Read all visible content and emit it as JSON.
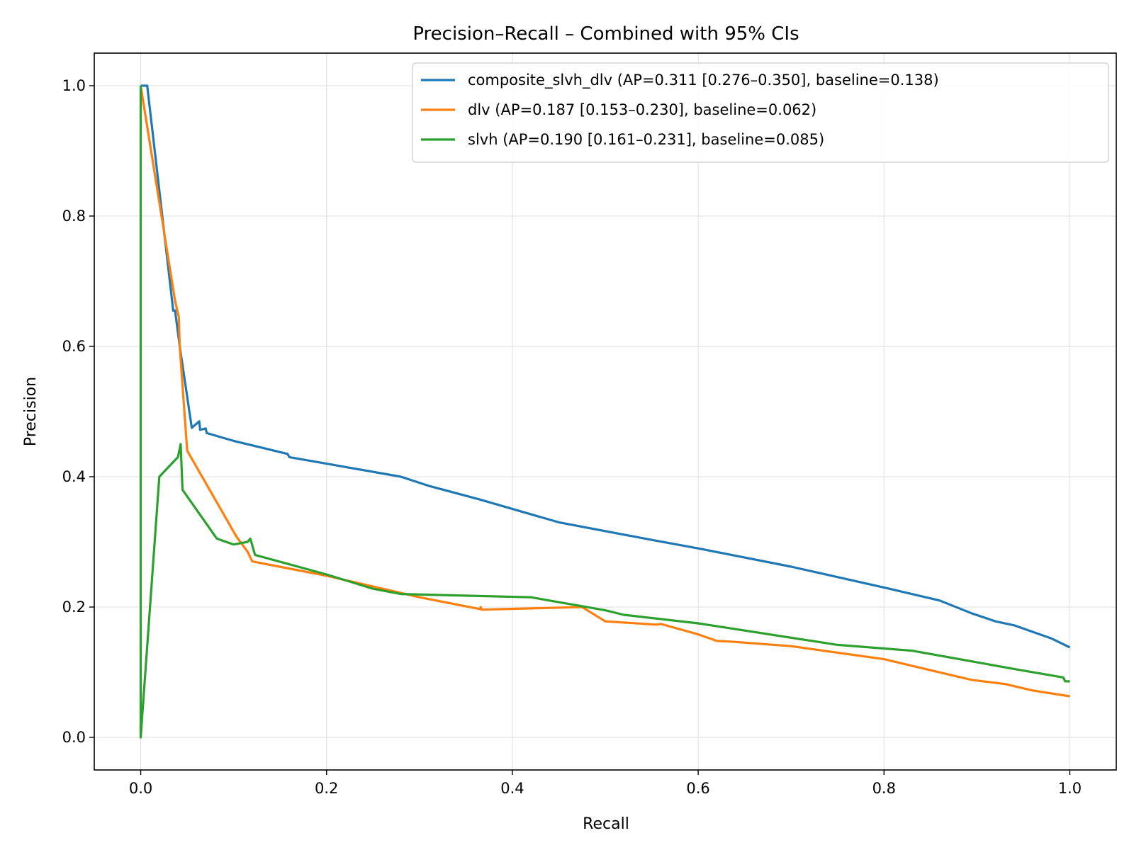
{
  "chart_data": {
    "type": "line",
    "title": "Precision–Recall – Combined with 95% CIs",
    "xlabel": "Recall",
    "ylabel": "Precision",
    "xlim": [
      -0.05,
      1.05
    ],
    "ylim": [
      -0.05,
      1.05
    ],
    "xticks": [
      "0.0",
      "0.2",
      "0.4",
      "0.6",
      "0.8",
      "1.0"
    ],
    "yticks": [
      "0.0",
      "0.2",
      "0.4",
      "0.6",
      "0.8",
      "1.0"
    ],
    "grid": true,
    "legend_position": "top-right",
    "series": [
      {
        "name": "composite_slvh_dlv (AP=0.311 [0.276–0.350], baseline=0.138)",
        "color": "#1f77b4",
        "points": [
          [
            0.0,
            1.0
          ],
          [
            0.007,
            1.0
          ],
          [
            0.035,
            0.655
          ],
          [
            0.037,
            0.655
          ],
          [
            0.042,
            0.6
          ],
          [
            0.055,
            0.475
          ],
          [
            0.063,
            0.485
          ],
          [
            0.064,
            0.472
          ],
          [
            0.07,
            0.474
          ],
          [
            0.071,
            0.467
          ],
          [
            0.1,
            0.455
          ],
          [
            0.158,
            0.435
          ],
          [
            0.16,
            0.43
          ],
          [
            0.2,
            0.42
          ],
          [
            0.28,
            0.4
          ],
          [
            0.31,
            0.386
          ],
          [
            0.36,
            0.367
          ],
          [
            0.365,
            0.365
          ],
          [
            0.45,
            0.33
          ],
          [
            0.55,
            0.303
          ],
          [
            0.6,
            0.29
          ],
          [
            0.7,
            0.262
          ],
          [
            0.8,
            0.23
          ],
          [
            0.86,
            0.21
          ],
          [
            0.895,
            0.19
          ],
          [
            0.92,
            0.178
          ],
          [
            0.94,
            0.172
          ],
          [
            0.98,
            0.152
          ],
          [
            1.0,
            0.138
          ]
        ]
      },
      {
        "name": "dlv (AP=0.187 [0.153–0.230], baseline=0.062)",
        "color": "#ff7f0e",
        "points": [
          [
            0.0,
            1.0
          ],
          [
            0.037,
            0.67
          ],
          [
            0.041,
            0.645
          ],
          [
            0.042,
            0.6
          ],
          [
            0.05,
            0.44
          ],
          [
            0.103,
            0.308
          ],
          [
            0.115,
            0.285
          ],
          [
            0.12,
            0.27
          ],
          [
            0.2,
            0.248
          ],
          [
            0.3,
            0.215
          ],
          [
            0.365,
            0.197
          ],
          [
            0.366,
            0.2
          ],
          [
            0.367,
            0.196
          ],
          [
            0.475,
            0.2
          ],
          [
            0.5,
            0.178
          ],
          [
            0.555,
            0.173
          ],
          [
            0.56,
            0.174
          ],
          [
            0.6,
            0.158
          ],
          [
            0.62,
            0.148
          ],
          [
            0.635,
            0.147
          ],
          [
            0.7,
            0.14
          ],
          [
            0.8,
            0.12
          ],
          [
            0.88,
            0.093
          ],
          [
            0.895,
            0.088
          ],
          [
            0.93,
            0.082
          ],
          [
            0.96,
            0.072
          ],
          [
            1.0,
            0.063
          ]
        ]
      },
      {
        "name": "slvh (AP=0.190 [0.161–0.231], baseline=0.085)",
        "color": "#2ca02c",
        "points": [
          [
            0.0,
            1.0
          ],
          [
            0.0,
            0.0
          ],
          [
            0.02,
            0.4
          ],
          [
            0.04,
            0.43
          ],
          [
            0.043,
            0.45
          ],
          [
            0.045,
            0.38
          ],
          [
            0.082,
            0.305
          ],
          [
            0.1,
            0.296
          ],
          [
            0.115,
            0.3
          ],
          [
            0.118,
            0.305
          ],
          [
            0.123,
            0.28
          ],
          [
            0.2,
            0.25
          ],
          [
            0.25,
            0.228
          ],
          [
            0.28,
            0.22
          ],
          [
            0.42,
            0.215
          ],
          [
            0.5,
            0.195
          ],
          [
            0.52,
            0.188
          ],
          [
            0.6,
            0.175
          ],
          [
            0.75,
            0.142
          ],
          [
            0.83,
            0.133
          ],
          [
            0.94,
            0.105
          ],
          [
            0.993,
            0.092
          ],
          [
            0.995,
            0.086
          ],
          [
            1.0,
            0.086
          ]
        ]
      }
    ]
  }
}
